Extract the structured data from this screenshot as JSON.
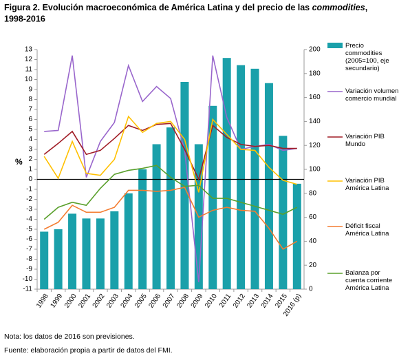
{
  "chart_data": {
    "type": "bar_line",
    "title": [
      "Figura 2. Evolución macroeconómica de América Latina y del precio de las ",
      "commodities",
      ",",
      "1998-2016"
    ],
    "ylabel": "%",
    "categories": [
      "1998",
      "1999",
      "2000",
      "2001",
      "2002",
      "2003",
      "2004",
      "2005",
      "2006",
      "2007",
      "2008",
      "2009",
      "2010",
      "2011",
      "2012",
      "2013",
      "2014",
      "2015",
      "2016 (p)"
    ],
    "series": [
      {
        "name": "Precio commodities (2005=100, eje secundario)",
        "type": "bar",
        "axis": "y2",
        "color": "#1aa0aa",
        "values": [
          48,
          50,
          63,
          59,
          59,
          65,
          80,
          100,
          121,
          135,
          173,
          121,
          153,
          193,
          187,
          184,
          172,
          128,
          88
        ]
      },
      {
        "name": "Variación volumen comercio mundial",
        "type": "line",
        "color": "#9966cc",
        "values": [
          4.8,
          4.9,
          12.4,
          0.2,
          3.8,
          5.7,
          11.4,
          7.8,
          9.3,
          8.1,
          2.9,
          -10.3,
          12.4,
          6.2,
          3.0,
          3.3,
          3.5,
          2.9,
          3.1
        ]
      },
      {
        "name": "Variación PIB Mundo",
        "type": "line",
        "color": "#a01c25",
        "values": [
          2.5,
          3.6,
          4.8,
          2.5,
          2.9,
          4.1,
          5.4,
          4.9,
          5.5,
          5.6,
          3.0,
          0.0,
          5.4,
          4.2,
          3.5,
          3.3,
          3.4,
          3.1,
          3.1
        ]
      },
      {
        "name": "Variación PIB América Latina",
        "type": "line",
        "color": "#ffc000",
        "values": [
          2.3,
          0.1,
          3.8,
          0.6,
          0.4,
          2.0,
          6.3,
          4.7,
          5.6,
          5.8,
          4.0,
          -1.3,
          6.0,
          4.5,
          3.0,
          2.9,
          1.2,
          -0.1,
          -0.5
        ]
      },
      {
        "name": "Déficit fiscal América Latina",
        "type": "line",
        "color": "#f47c30",
        "values": [
          -5.0,
          -4.3,
          -2.6,
          -3.3,
          -3.3,
          -2.8,
          -1.1,
          -1.1,
          -1.2,
          -1.1,
          -0.8,
          -3.8,
          -3.1,
          -2.8,
          -3.1,
          -3.2,
          -4.9,
          -7.0,
          -6.2
        ]
      },
      {
        "name": "Balanza por cuenta corriente América Latina",
        "type": "line",
        "color": "#5aa02c",
        "values": [
          -4.0,
          -2.8,
          -2.3,
          -2.6,
          -0.9,
          0.5,
          0.9,
          1.1,
          1.4,
          0.2,
          -0.7,
          -0.6,
          -1.9,
          -1.9,
          -2.3,
          -2.7,
          -3.1,
          -3.5,
          -2.8
        ]
      }
    ],
    "ylim": [
      -11,
      13
    ],
    "yticks": [
      -11,
      -10,
      -9,
      -8,
      -7,
      -6,
      -5,
      -4,
      -3,
      -2,
      -1,
      0,
      1,
      2,
      3,
      4,
      5,
      6,
      7,
      8,
      9,
      10,
      11,
      12,
      13
    ],
    "y2lim": [
      0,
      200
    ],
    "y2ticks": [
      0,
      20,
      40,
      60,
      80,
      100,
      120,
      140,
      160,
      180,
      200
    ],
    "grid": false,
    "legend": "right",
    "notes": [
      "Nota: los datos de 2016 son previsiones.",
      "Fuente: elaboración propia a partir de datos del FMI."
    ]
  }
}
